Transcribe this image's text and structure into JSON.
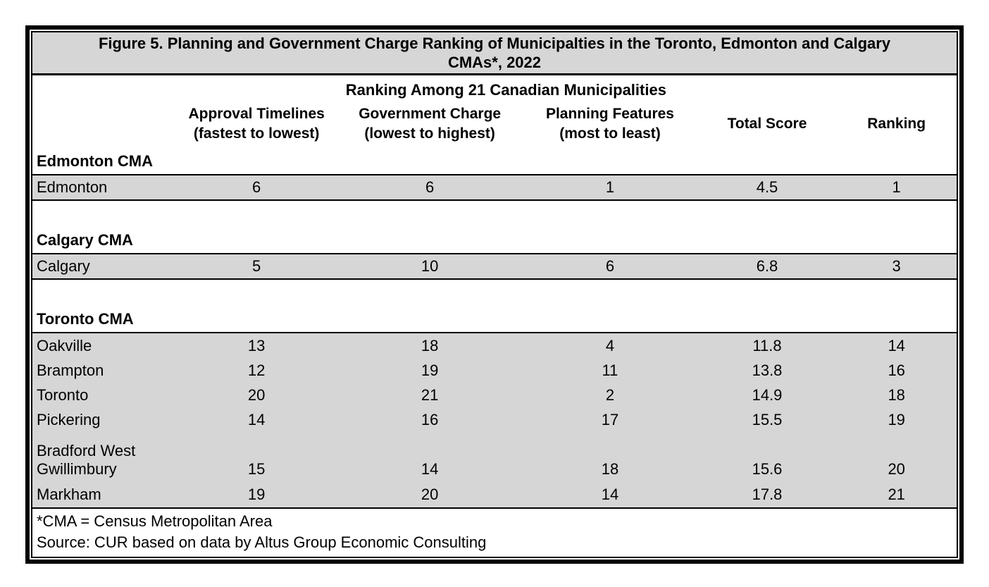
{
  "figure": {
    "title_line1": "Figure 5. Planning and Government Charge Ranking of Municipalties in the Toronto, Edmonton and Calgary",
    "title_line2": "CMAs*, 2022"
  },
  "header": {
    "group": "Ranking Among 21 Canadian Municipalities",
    "col_municipality": "",
    "col_approval": "Approval Timelines\n(fastest to lowest)",
    "col_government": "Government Charge\n(lowest to highest)",
    "col_planning": "Planning Features\n(most to least)",
    "col_total": "Total Score",
    "col_ranking": "Ranking"
  },
  "footnotes": {
    "cma": "*CMA = Census Metropolitan Area",
    "source": "Source: CUR based on data by Altus Group Economic Consulting"
  },
  "colors": {
    "band_gray": "#d6d6d6",
    "border_black": "#000000",
    "background_white": "#ffffff"
  },
  "chart_data": {
    "type": "table",
    "title": "Figure 5. Planning and Government Charge Ranking of Municipalties in the Toronto, Edmonton and Calgary CMAs*, 2022",
    "group_header": "Ranking Among 21 Canadian Municipalities",
    "columns": [
      "Municipality",
      "Approval Timelines (fastest to lowest)",
      "Government Charge (lowest to highest)",
      "Planning Features (most to least)",
      "Total Score",
      "Ranking"
    ],
    "sections": [
      {
        "label": "Edmonton CMA",
        "rows": [
          {
            "name": "Edmonton",
            "approval": "6",
            "government": "6",
            "planning": "1",
            "total": "4.5",
            "ranking": "1"
          }
        ]
      },
      {
        "label": "Calgary CMA",
        "rows": [
          {
            "name": "Calgary",
            "approval": "5",
            "government": "10",
            "planning": "6",
            "total": "6.8",
            "ranking": "3"
          }
        ]
      },
      {
        "label": "Toronto CMA",
        "rows": [
          {
            "name": "Oakville",
            "approval": "13",
            "government": "18",
            "planning": "4",
            "total": "11.8",
            "ranking": "14"
          },
          {
            "name": "Brampton",
            "approval": "12",
            "government": "19",
            "planning": "11",
            "total": "13.8",
            "ranking": "16"
          },
          {
            "name": "Toronto",
            "approval": "20",
            "government": "21",
            "planning": "2",
            "total": "14.9",
            "ranking": "18"
          },
          {
            "name": "Pickering",
            "approval": "14",
            "government": "16",
            "planning": "17",
            "total": "15.5",
            "ranking": "19"
          },
          {
            "name": "Bradford West Gwillimbury",
            "approval": "15",
            "government": "14",
            "planning": "18",
            "total": "15.6",
            "ranking": "20"
          },
          {
            "name": "Markham",
            "approval": "19",
            "government": "20",
            "planning": "14",
            "total": "17.8",
            "ranking": "21"
          }
        ]
      }
    ],
    "footnotes": [
      "*CMA = Census Metropolitan Area",
      "Source: CUR based on data by Altus Group Economic Consulting"
    ]
  }
}
